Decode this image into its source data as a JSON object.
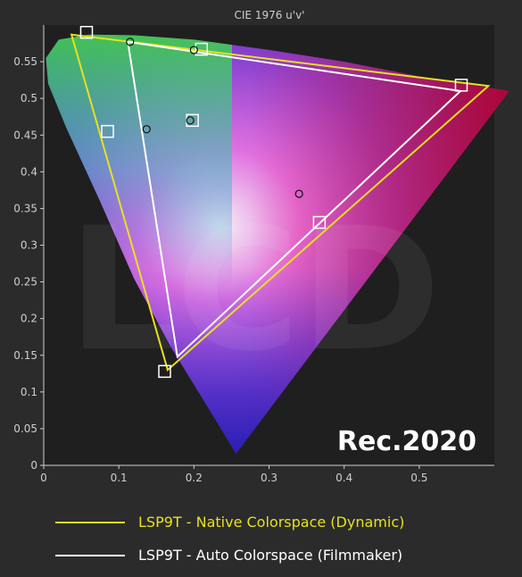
{
  "chart_data": {
    "type": "scatter",
    "title": "CIE 1976 u'v'",
    "annotation": "Rec.2020",
    "watermark": "LCD",
    "xlabel": "",
    "ylabel": "",
    "xlim": [
      0,
      0.6
    ],
    "ylim": [
      0,
      0.6
    ],
    "x_ticks": [
      "0",
      "0.1",
      "0.2",
      "0.3",
      "0.4",
      "0.5"
    ],
    "y_ticks": [
      "0",
      "0.05",
      "0.1",
      "0.15",
      "0.2",
      "0.25",
      "0.3",
      "0.35",
      "0.4",
      "0.45",
      "0.5",
      "0.55"
    ],
    "grid": false,
    "spectral_locus": [
      [
        0.256,
        0.016
      ],
      [
        0.23,
        0.06
      ],
      [
        0.17,
        0.16
      ],
      [
        0.12,
        0.255
      ],
      [
        0.075,
        0.36
      ],
      [
        0.03,
        0.46
      ],
      [
        0.006,
        0.52
      ],
      [
        0.003,
        0.555
      ],
      [
        0.02,
        0.58
      ],
      [
        0.06,
        0.587
      ],
      [
        0.12,
        0.586
      ],
      [
        0.2,
        0.58
      ],
      [
        0.3,
        0.566
      ],
      [
        0.4,
        0.55
      ],
      [
        0.5,
        0.53
      ],
      [
        0.62,
        0.51
      ]
    ],
    "series": [
      {
        "name": "LSP9T - Native Colorspace (Dynamic)",
        "color": "#e8e020",
        "points": [
          [
            0.037,
            0.587
          ],
          [
            0.592,
            0.517
          ],
          [
            0.165,
            0.13
          ]
        ]
      },
      {
        "name": "LSP9T - Auto Colorspace (Filmmaker)",
        "color": "#ffffff",
        "points": [
          [
            0.112,
            0.577
          ],
          [
            0.555,
            0.51
          ],
          [
            0.178,
            0.148
          ]
        ]
      }
    ],
    "target_squares": [
      [
        0.057,
        0.59
      ],
      [
        0.21,
        0.567
      ],
      [
        0.556,
        0.518
      ],
      [
        0.085,
        0.455
      ],
      [
        0.198,
        0.47
      ],
      [
        0.367,
        0.331
      ],
      [
        0.161,
        0.128
      ]
    ],
    "measured_circles": [
      [
        0.115,
        0.577
      ],
      [
        0.2,
        0.566
      ],
      [
        0.137,
        0.458
      ],
      [
        0.195,
        0.47
      ],
      [
        0.34,
        0.37
      ]
    ]
  }
}
